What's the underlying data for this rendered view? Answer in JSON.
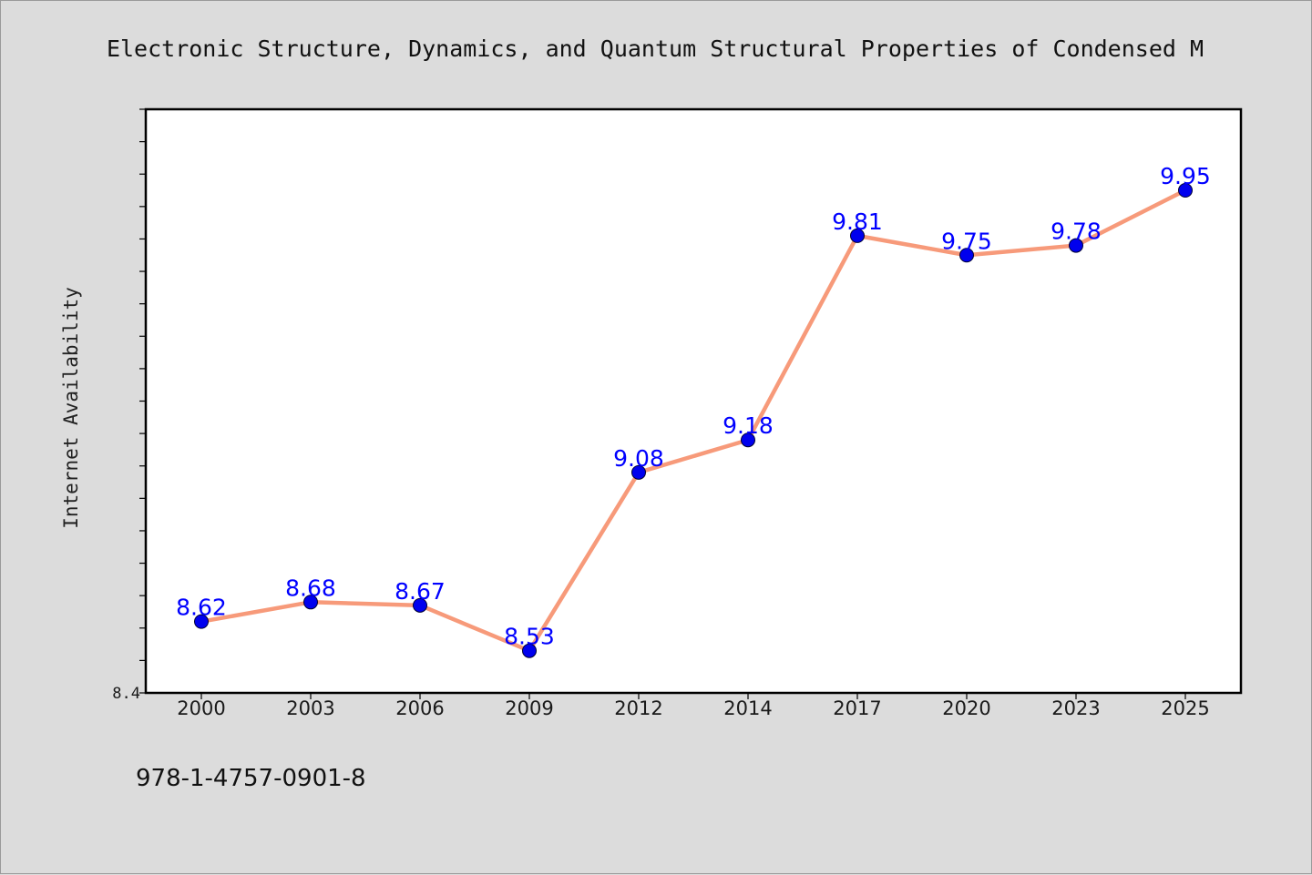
{
  "chart_data": {
    "type": "line",
    "title": "Electronic Structure, Dynamics, and Quantum Structural Properties of Condensed M",
    "xlabel": "",
    "ylabel": "Internet Availability",
    "categories": [
      "2000",
      "2003",
      "2006",
      "2009",
      "2012",
      "2014",
      "2017",
      "2020",
      "2023",
      "2025"
    ],
    "series": [
      {
        "values": [
          8.62,
          8.68,
          8.67,
          8.53,
          9.08,
          9.18,
          9.81,
          9.75,
          9.78,
          9.95
        ]
      }
    ],
    "ylim": [
      8.4,
      10.2
    ],
    "y_tick_labels": [
      "8.4"
    ],
    "grid": false,
    "legend": "none",
    "line_color": "#f79a7a",
    "marker_color": "#0000ee",
    "label_color": "#0000ff"
  },
  "footer": {
    "isbn": "978-1-4757-0901-8"
  }
}
